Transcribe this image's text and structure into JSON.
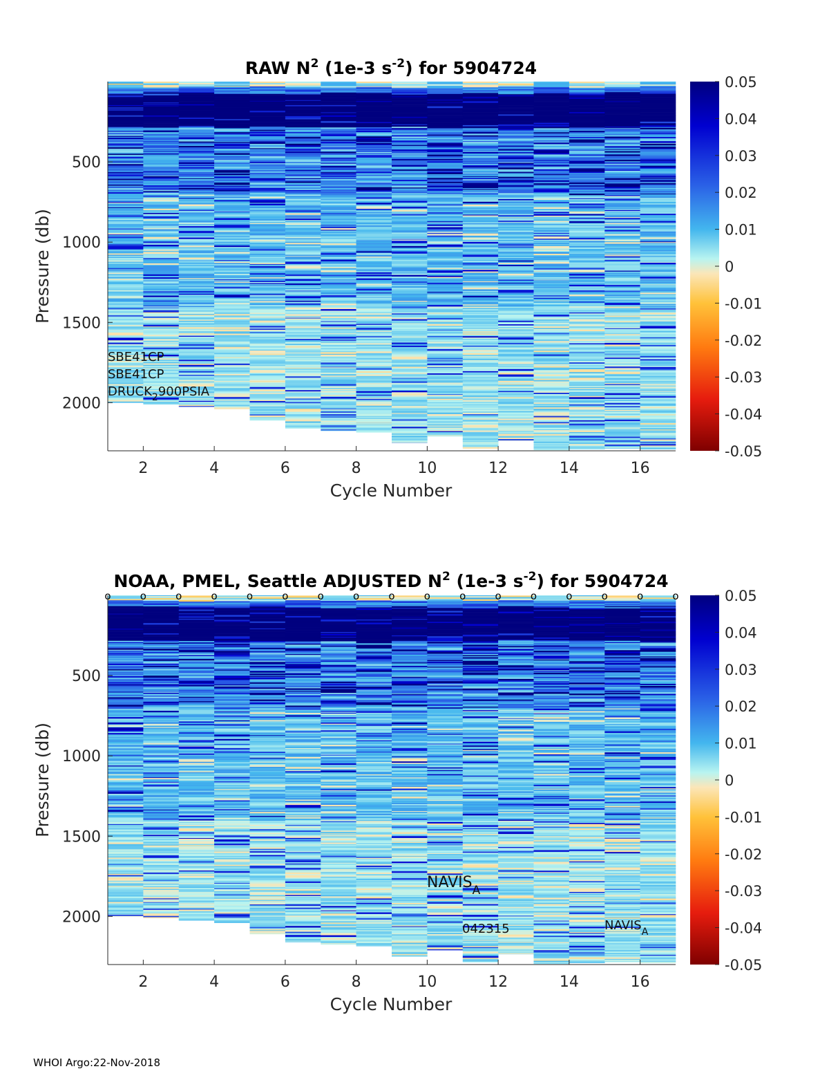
{
  "footer": "WHOI Argo:22-Nov-2018",
  "chart_data": [
    {
      "type": "heatmap",
      "title_parts": {
        "a": "RAW N",
        "sup1": "2",
        "b": " (1e-3 s",
        "sup2": "-2",
        "c": ") for 5904724"
      },
      "xlabel": "Cycle Number",
      "ylabel": "Pressure (db)",
      "xlim": [
        1,
        17
      ],
      "ylim": [
        0,
        2300
      ],
      "xticks": [
        2,
        4,
        6,
        8,
        10,
        12,
        14,
        16
      ],
      "yticks": [
        500,
        1000,
        1500,
        2000
      ],
      "cycles": [
        1,
        2,
        3,
        4,
        5,
        6,
        7,
        8,
        9,
        10,
        11,
        12,
        13,
        14,
        15,
        16
      ],
      "max_pressure": [
        2000,
        2010,
        2025,
        2040,
        2110,
        2160,
        2175,
        2185,
        2250,
        2210,
        2285,
        2235,
        2295,
        2290,
        2285,
        2290
      ],
      "color_limits": [
        -0.05,
        0.05
      ],
      "colorbar_ticks": [
        "0.05",
        "0.04",
        "0.03",
        "0.02",
        "0.01",
        "0",
        "-0.01",
        "-0.02",
        "-0.03",
        "-0.04",
        "-0.05"
      ],
      "annotations": {
        "line1": "SBE41CP",
        "line2": "SBE41CP",
        "line3a": "DRUCK",
        "line3sub": "2",
        "line3b": "900PSIA"
      }
    },
    {
      "type": "heatmap",
      "title_parts": {
        "a": "NOAA, PMEL, Seattle  ADJUSTED N",
        "sup1": "2",
        "b": " (1e-3 s",
        "sup2": "-2",
        "c": ") for 5904724"
      },
      "xlabel": "Cycle Number",
      "ylabel": "Pressure (db)",
      "xlim": [
        1,
        17
      ],
      "ylim": [
        0,
        2300
      ],
      "xticks": [
        2,
        4,
        6,
        8,
        10,
        12,
        14,
        16
      ],
      "yticks": [
        500,
        1000,
        1500,
        2000
      ],
      "cycles": [
        1,
        2,
        3,
        4,
        5,
        6,
        7,
        8,
        9,
        10,
        11,
        12,
        13,
        14,
        15,
        16
      ],
      "max_pressure": [
        2000,
        2010,
        2025,
        2040,
        2110,
        2160,
        2175,
        2185,
        2250,
        2210,
        2285,
        2235,
        2295,
        2290,
        2285,
        2290
      ],
      "color_limits": [
        -0.05,
        0.05
      ],
      "colorbar_ticks": [
        "0.05",
        "0.04",
        "0.03",
        "0.02",
        "0.01",
        "0",
        "-0.01",
        "-0.02",
        "-0.03",
        "-0.04",
        "-0.05"
      ],
      "marker_label": "o",
      "marker_cycles": [
        1,
        2,
        3,
        4,
        5,
        6,
        7,
        8,
        9,
        10,
        11,
        12,
        13,
        14,
        15,
        16,
        17
      ],
      "annotations": {
        "navis1": "NAVIS",
        "navis1_sub": "A",
        "serial": "042315",
        "navis2": "NAVIS",
        "navis2_sub": "A"
      }
    }
  ]
}
